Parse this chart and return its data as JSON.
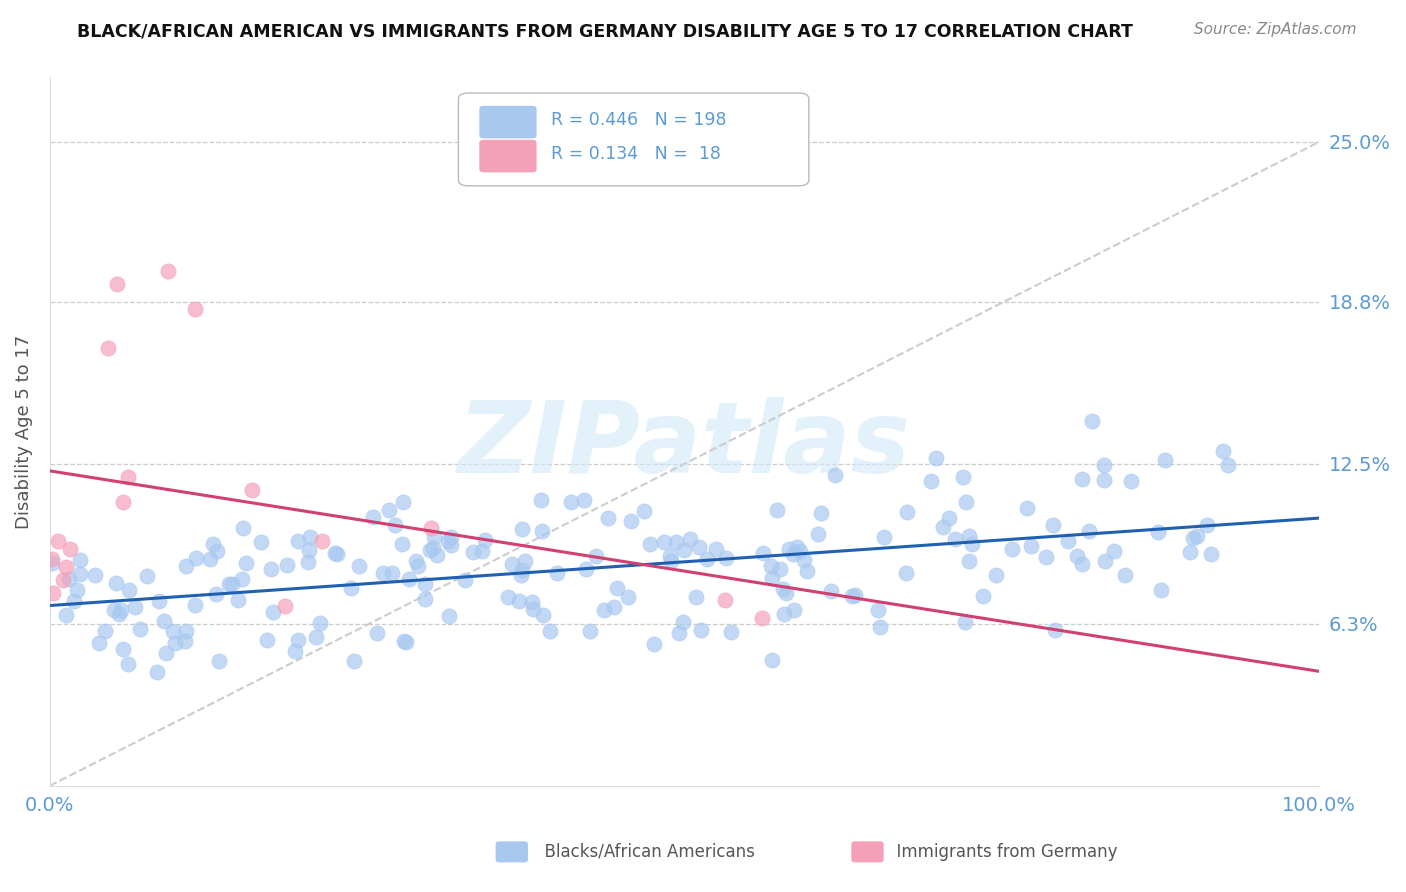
{
  "title": "BLACK/AFRICAN AMERICAN VS IMMIGRANTS FROM GERMANY DISABILITY AGE 5 TO 17 CORRELATION CHART",
  "source": "Source: ZipAtlas.com",
  "ylabel": "Disability Age 5 to 17",
  "blue_R": 0.446,
  "blue_N": 198,
  "pink_R": 0.134,
  "pink_N": 18,
  "blue_color": "#a8c8f0",
  "pink_color": "#f4a0b8",
  "blue_line_color": "#2060b0",
  "pink_line_color": "#d04070",
  "axis_label_color": "#5b9bd5",
  "ytick_labels": [
    "6.3%",
    "12.5%",
    "18.8%",
    "25.0%"
  ],
  "ytick_values": [
    0.063,
    0.125,
    0.188,
    0.25
  ],
  "xtick_labels": [
    "0.0%",
    "100.0%"
  ],
  "xlim": [
    0.0,
    1.0
  ],
  "ylim": [
    0.0,
    0.275
  ],
  "watermark": "ZIPatlas",
  "legend_label_blue": "Blacks/African Americans",
  "legend_label_pink": "Immigrants from Germany"
}
